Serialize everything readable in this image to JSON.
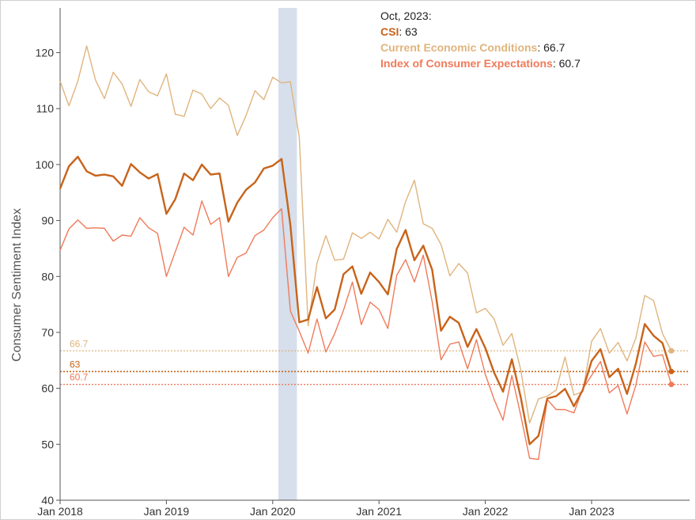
{
  "chart_data": {
    "type": "line",
    "ylabel": "Consumer Sentiment Index",
    "ylim": [
      40,
      128
    ],
    "y_ticks": [
      "40",
      "50",
      "60",
      "70",
      "80",
      "90",
      "100",
      "110",
      "120"
    ],
    "x_ticks": [
      {
        "label": "Jan 2018",
        "month_index": 0
      },
      {
        "label": "Jan 2019",
        "month_index": 12
      },
      {
        "label": "Jan 2020",
        "month_index": 24
      },
      {
        "label": "Jan 2021",
        "month_index": 36
      },
      {
        "label": "Jan 2022",
        "month_index": 48
      },
      {
        "label": "Jan 2023",
        "month_index": 60
      }
    ],
    "x_start": "2018-01",
    "x_end": "2023-10",
    "recession_band": {
      "start": "2020-02",
      "end": "2020-04"
    },
    "colors": {
      "csi": "#c8631a",
      "current": "#e0b47e",
      "expectations": "#f07a5a",
      "recession": "#d6dfeb",
      "axis": "#555555"
    },
    "legend": {
      "date": "Oct, 2023:",
      "items": [
        {
          "name": "CSI",
          "value": "63"
        },
        {
          "name": "Current Economic Conditions",
          "value": "66.7"
        },
        {
          "name": "Index of Consumer Expectations",
          "value": "60.7"
        }
      ]
    },
    "reference_labels": {
      "current": "66.7",
      "csi": "63",
      "expectations": "60.7"
    },
    "series": [
      {
        "key": "current",
        "values": [
          114.9,
          110.5,
          114.9,
          121.2,
          115.1,
          111.8,
          116.5,
          114.4,
          110.4,
          115.2,
          113.0,
          112.3,
          116.2,
          109.0,
          108.6,
          113.3,
          112.6,
          110.0,
          111.9,
          110.6,
          105.2,
          108.8,
          113.2,
          111.6,
          115.6,
          114.6,
          114.8,
          104.9,
          71.2,
          82.4,
          87.3,
          82.9,
          83.1,
          87.8,
          86.8,
          87.9,
          86.7,
          90.2,
          87.9,
          93.4,
          97.2,
          89.4,
          88.6,
          85.7,
          80.1,
          82.3,
          80.6,
          73.5,
          74.3,
          72.4,
          67.7,
          69.8,
          63.3,
          53.8,
          58.1,
          58.6,
          59.7,
          65.6,
          58.8,
          59.4,
          68.4,
          70.7,
          66.3,
          68.2,
          64.9,
          69.0,
          76.6,
          75.7,
          69.8,
          66.7
        ]
      },
      {
        "key": "csi",
        "values": [
          95.7,
          99.7,
          101.4,
          98.8,
          98.0,
          98.2,
          97.9,
          96.2,
          100.1,
          98.6,
          97.5,
          98.3,
          91.2,
          93.8,
          98.4,
          97.2,
          100.0,
          98.2,
          98.4,
          89.8,
          93.2,
          95.5,
          96.8,
          99.3,
          99.8,
          101.0,
          89.1,
          71.8,
          72.3,
          78.1,
          72.5,
          74.1,
          80.4,
          81.8,
          76.9,
          80.7,
          79.0,
          76.8,
          84.9,
          88.3,
          82.9,
          85.5,
          81.2,
          70.3,
          72.8,
          71.7,
          67.4,
          70.6,
          67.2,
          62.8,
          59.4,
          65.2,
          58.4,
          50.0,
          51.5,
          58.2,
          58.6,
          59.9,
          56.8,
          59.7,
          64.9,
          67.0,
          62.0,
          63.5,
          59.0,
          64.4,
          71.5,
          69.4,
          68.1,
          63.0
        ]
      },
      {
        "key": "expectations",
        "values": [
          84.7,
          88.5,
          90.1,
          88.6,
          88.7,
          88.6,
          86.3,
          87.4,
          87.2,
          90.5,
          88.7,
          87.7,
          80.0,
          84.4,
          88.8,
          87.4,
          93.5,
          89.3,
          90.5,
          80.0,
          83.4,
          84.2,
          87.3,
          88.3,
          90.5,
          92.1,
          73.8,
          70.2,
          66.3,
          72.4,
          66.5,
          69.8,
          74.0,
          79.0,
          71.4,
          75.4,
          74.1,
          70.7,
          80.2,
          83.0,
          79.0,
          83.8,
          75.5,
          65.1,
          67.9,
          68.3,
          63.5,
          68.7,
          62.5,
          58.0,
          54.3,
          62.3,
          55.2,
          47.5,
          47.3,
          58.0,
          56.2,
          56.2,
          55.6,
          59.9,
          62.3,
          64.8,
          59.2,
          60.5,
          55.4,
          60.6,
          68.3,
          65.7,
          66.0,
          60.7
        ]
      }
    ]
  }
}
